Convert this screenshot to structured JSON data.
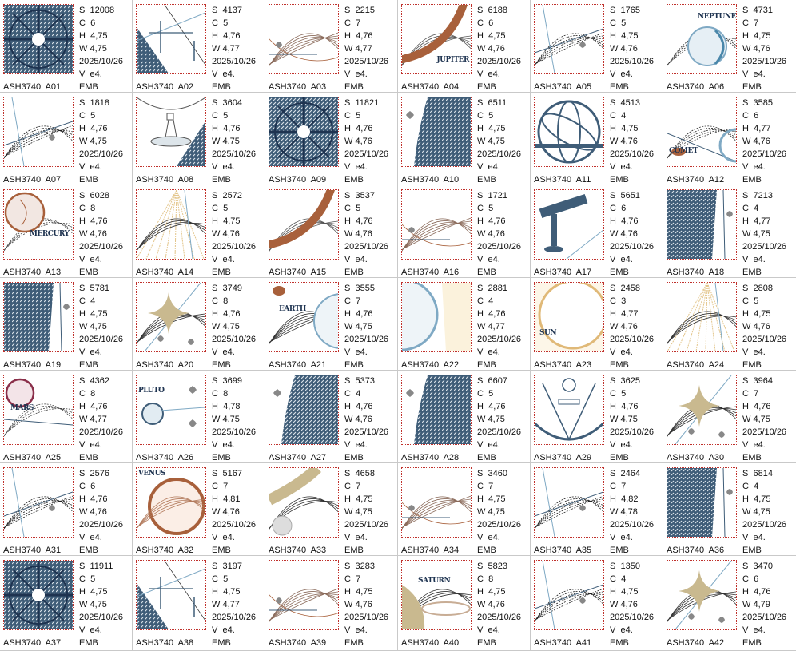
{
  "colors": {
    "hatch": "#3f5d78",
    "navy": "#1e3350",
    "rust": "#a8603b",
    "tan": "#c9b98f",
    "light_blue": "#7fa9c4",
    "border_red": "#c0312c",
    "grid_line": "#c9c9c9"
  },
  "labels": {
    "s": "S",
    "c": "C",
    "h": "H",
    "w": "W",
    "v": "V"
  },
  "items": [
    {
      "name": "ASH3740  A01",
      "s": "12008",
      "c": "6",
      "h": "4,75",
      "w": "4,75",
      "date": "2025/10/26",
      "v": "e4.",
      "fmt": "EMB",
      "art": "compass"
    },
    {
      "name": "ASH3740  A02",
      "s": "4137",
      "c": "5",
      "h": "4,76",
      "w": "4,77",
      "date": "2025/10/26",
      "v": "e4.",
      "fmt": "EMB",
      "art": "hatch-corner"
    },
    {
      "name": "ASH3740  A03",
      "s": "2215",
      "c": "7",
      "h": "4,76",
      "w": "4,77",
      "date": "2025/10/26",
      "v": "e4.",
      "fmt": "EMB",
      "art": "planet-rust"
    },
    {
      "name": "ASH3740  A04",
      "s": "6188",
      "c": "6",
      "h": "4,75",
      "w": "4,76",
      "date": "2025/10/26",
      "v": "e4.",
      "fmt": "EMB",
      "art": "ring-rust",
      "thumb_label": "JUPITER"
    },
    {
      "name": "ASH3740  A05",
      "s": "1765",
      "c": "5",
      "h": "4,75",
      "w": "4,76",
      "date": "2025/10/26",
      "v": "e4.",
      "fmt": "EMB",
      "art": "lines"
    },
    {
      "name": "ASH3740  A06",
      "s": "4731",
      "c": "7",
      "h": "4,75",
      "w": "4,76",
      "date": "2025/10/26",
      "v": "e4.",
      "fmt": "EMB",
      "art": "planet-blue",
      "thumb_label": "NEPTUNE"
    },
    {
      "name": "ASH3740  A07",
      "s": "1818",
      "c": "5",
      "h": "4,76",
      "w": "4,75",
      "date": "2025/10/26",
      "v": "e4.",
      "fmt": "EMB",
      "art": "lines"
    },
    {
      "name": "ASH3740  A08",
      "s": "3604",
      "c": "5",
      "h": "4,76",
      "w": "4,75",
      "date": "2025/10/26",
      "v": "e4.",
      "fmt": "EMB",
      "art": "globe-stand"
    },
    {
      "name": "ASH3740  A09",
      "s": "11821",
      "c": "5",
      "h": "4,76",
      "w": "4,76",
      "date": "2025/10/26",
      "v": "e4.",
      "fmt": "EMB",
      "art": "compass"
    },
    {
      "name": "ASH3740  A10",
      "s": "6511",
      "c": "5",
      "h": "4,75",
      "w": "4,75",
      "date": "2025/10/26",
      "v": "e4.",
      "fmt": "EMB",
      "art": "hatch-right"
    },
    {
      "name": "ASH3740  A11",
      "s": "4513",
      "c": "4",
      "h": "4,75",
      "w": "4,76",
      "date": "2025/10/26",
      "v": "e4.",
      "fmt": "EMB",
      "art": "armillary"
    },
    {
      "name": "ASH3740  A12",
      "s": "3585",
      "c": "6",
      "h": "4,77",
      "w": "4,76",
      "date": "2025/10/26",
      "v": "e4.",
      "fmt": "EMB",
      "art": "comet",
      "thumb_label": "COMET"
    },
    {
      "name": "ASH3740  A13",
      "s": "6028",
      "c": "8",
      "h": "4,76",
      "w": "4,76",
      "date": "2025/10/26",
      "v": "e4.",
      "fmt": "EMB",
      "art": "planet-rust-small",
      "thumb_label": "MERCURY"
    },
    {
      "name": "ASH3740  A14",
      "s": "2572",
      "c": "5",
      "h": "4,75",
      "w": "4,76",
      "date": "2025/10/26",
      "v": "e4.",
      "fmt": "EMB",
      "art": "sunrays"
    },
    {
      "name": "ASH3740  A15",
      "s": "3537",
      "c": "5",
      "h": "4,76",
      "w": "4,76",
      "date": "2025/10/26",
      "v": "e4.",
      "fmt": "EMB",
      "art": "ring-rust"
    },
    {
      "name": "ASH3740  A16",
      "s": "1721",
      "c": "5",
      "h": "4,76",
      "w": "4,76",
      "date": "2025/10/26",
      "v": "e4.",
      "fmt": "EMB",
      "art": "planet-rust"
    },
    {
      "name": "ASH3740  A17",
      "s": "5651",
      "c": "6",
      "h": "4,76",
      "w": "4,76",
      "date": "2025/10/26",
      "v": "e4.",
      "fmt": "EMB",
      "art": "telescope"
    },
    {
      "name": "ASH3740  A18",
      "s": "7213",
      "c": "4",
      "h": "4,77",
      "w": "4,75",
      "date": "2025/10/26",
      "v": "e4.",
      "fmt": "EMB",
      "art": "hatch-left"
    },
    {
      "name": "ASH3740  A19",
      "s": "5781",
      "c": "4",
      "h": "4,75",
      "w": "4,75",
      "date": "2025/10/26",
      "v": "e4.",
      "fmt": "EMB",
      "art": "hatch-left"
    },
    {
      "name": "ASH3740  A20",
      "s": "3749",
      "c": "8",
      "h": "4,76",
      "w": "4,75",
      "date": "2025/10/26",
      "v": "e4.",
      "fmt": "EMB",
      "art": "star"
    },
    {
      "name": "ASH3740  A21",
      "s": "3555",
      "c": "7",
      "h": "4,76",
      "w": "4,75",
      "date": "2025/10/26",
      "v": "e4.",
      "fmt": "EMB",
      "art": "earth-right",
      "thumb_label": "EARTH"
    },
    {
      "name": "ASH3740  A22",
      "s": "2881",
      "c": "4",
      "h": "4,76",
      "w": "4,77",
      "date": "2025/10/26",
      "v": "e4.",
      "fmt": "EMB",
      "art": "earth-left"
    },
    {
      "name": "ASH3740  A23",
      "s": "2458",
      "c": "3",
      "h": "4,77",
      "w": "4,76",
      "date": "2025/10/26",
      "v": "e4.",
      "fmt": "EMB",
      "art": "sun",
      "thumb_label": "SUN"
    },
    {
      "name": "ASH3740  A24",
      "s": "2808",
      "c": "5",
      "h": "4,75",
      "w": "4,76",
      "date": "2025/10/26",
      "v": "e4.",
      "fmt": "EMB",
      "art": "sunrays"
    },
    {
      "name": "ASH3740  A25",
      "s": "4362",
      "c": "8",
      "h": "4,76",
      "w": "4,77",
      "date": "2025/10/26",
      "v": "e4.",
      "fmt": "EMB",
      "art": "planet-mars",
      "thumb_label": "MARS"
    },
    {
      "name": "ASH3740  A26",
      "s": "3699",
      "c": "8",
      "h": "4,78",
      "w": "4,75",
      "date": "2025/10/26",
      "v": "e4.",
      "fmt": "EMB",
      "art": "planet-pluto",
      "thumb_label": "PLUTO"
    },
    {
      "name": "ASH3740  A27",
      "s": "5373",
      "c": "4",
      "h": "4,76",
      "w": "4,76",
      "date": "2025/10/26",
      "v": "e4.",
      "fmt": "EMB",
      "art": "hatch-right"
    },
    {
      "name": "ASH3740  A28",
      "s": "6607",
      "c": "5",
      "h": "4,76",
      "w": "4,75",
      "date": "2025/10/26",
      "v": "e4.",
      "fmt": "EMB",
      "art": "hatch-right"
    },
    {
      "name": "ASH3740  A29",
      "s": "3625",
      "c": "5",
      "h": "4,76",
      "w": "4,75",
      "date": "2025/10/26",
      "v": "e4.",
      "fmt": "EMB",
      "art": "sextant"
    },
    {
      "name": "ASH3740  A30",
      "s": "3964",
      "c": "7",
      "h": "4,76",
      "w": "4,75",
      "date": "2025/10/26",
      "v": "e4.",
      "fmt": "EMB",
      "art": "star"
    },
    {
      "name": "ASH3740  A31",
      "s": "2576",
      "c": "6",
      "h": "4,76",
      "w": "4,76",
      "date": "2025/10/26",
      "v": "e4.",
      "fmt": "EMB",
      "art": "lines"
    },
    {
      "name": "ASH3740  A32",
      "s": "5167",
      "c": "7",
      "h": "4,81",
      "w": "4,76",
      "date": "2025/10/26",
      "v": "e4.",
      "fmt": "EMB",
      "art": "planet-venus",
      "thumb_label": "VENUS"
    },
    {
      "name": "ASH3740  A33",
      "s": "4658",
      "c": "7",
      "h": "4,75",
      "w": "4,75",
      "date": "2025/10/26",
      "v": "e4.",
      "fmt": "EMB",
      "art": "tan-ring"
    },
    {
      "name": "ASH3740  A34",
      "s": "3460",
      "c": "7",
      "h": "4,75",
      "w": "4,75",
      "date": "2025/10/26",
      "v": "e4.",
      "fmt": "EMB",
      "art": "planet-rust"
    },
    {
      "name": "ASH3740  A35",
      "s": "2464",
      "c": "7",
      "h": "4,82",
      "w": "4,78",
      "date": "2025/10/26",
      "v": "e4.",
      "fmt": "EMB",
      "art": "lines"
    },
    {
      "name": "ASH3740  A36",
      "s": "6814",
      "c": "4",
      "h": "4,75",
      "w": "4,75",
      "date": "2025/10/26",
      "v": "e4.",
      "fmt": "EMB",
      "art": "hatch-left"
    },
    {
      "name": "ASH3740  A37",
      "s": "11911",
      "c": "5",
      "h": "4,75",
      "w": "4,75",
      "date": "2025/10/26",
      "v": "e4.",
      "fmt": "EMB",
      "art": "compass"
    },
    {
      "name": "ASH3740  A38",
      "s": "3197",
      "c": "5",
      "h": "4,75",
      "w": "4,77",
      "date": "2025/10/26",
      "v": "e4.",
      "fmt": "EMB",
      "art": "hatch-corner"
    },
    {
      "name": "ASH3740  A39",
      "s": "3283",
      "c": "7",
      "h": "4,75",
      "w": "4,76",
      "date": "2025/10/26",
      "v": "e4.",
      "fmt": "EMB",
      "art": "planet-rust"
    },
    {
      "name": "ASH3740  A40",
      "s": "5823",
      "c": "8",
      "h": "4,75",
      "w": "4,76",
      "date": "2025/10/26",
      "v": "e4.",
      "fmt": "EMB",
      "art": "saturn",
      "thumb_label": "SATURN"
    },
    {
      "name": "ASH3740  A41",
      "s": "1350",
      "c": "4",
      "h": "4,75",
      "w": "4,76",
      "date": "2025/10/26",
      "v": "e4.",
      "fmt": "EMB",
      "art": "lines"
    },
    {
      "name": "ASH3740  A42",
      "s": "3470",
      "c": "6",
      "h": "4,76",
      "w": "4,79",
      "date": "2025/10/26",
      "v": "e4.",
      "fmt": "EMB",
      "art": "star"
    }
  ]
}
